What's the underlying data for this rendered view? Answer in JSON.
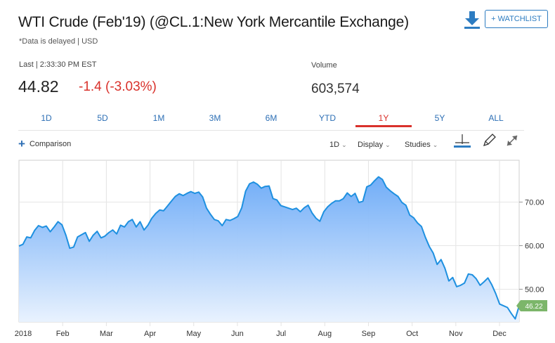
{
  "header": {
    "title": "WTI Crude (Feb'19) (@CL.1:New York Mercantile Exchange)",
    "subtitle": "*Data is delayed | USD",
    "watchlist_label": "+ WATCHLIST"
  },
  "quote": {
    "last_label": "Last | 2:33:30 PM EST",
    "price": "44.82",
    "change": "-1.4 (-3.03%)",
    "volume_label": "Volume",
    "volume": "603,574"
  },
  "tabs": [
    {
      "label": "1D"
    },
    {
      "label": "5D"
    },
    {
      "label": "1M"
    },
    {
      "label": "3M"
    },
    {
      "label": "6M"
    },
    {
      "label": "YTD"
    },
    {
      "label": "1Y"
    },
    {
      "label": "5Y"
    },
    {
      "label": "ALL"
    }
  ],
  "active_tab": "1Y",
  "toolbar": {
    "comparison_label": "Comparison",
    "interval_label": "1D",
    "display_label": "Display",
    "studies_label": "Studies"
  },
  "colors": {
    "accent": "#2d6fb5",
    "negative": "#d9312b",
    "line": "#1e90e0",
    "last_tag": "#7cb66a"
  },
  "chart_data": {
    "type": "area",
    "x_labels": [
      "2018",
      "Feb",
      "Mar",
      "Apr",
      "May",
      "Jun",
      "Jul",
      "Aug",
      "Sep",
      "Oct",
      "Nov",
      "Dec"
    ],
    "y_ticks": [
      50,
      60,
      70
    ],
    "y_tick_labels": [
      "50.00",
      "60.00",
      "70.00"
    ],
    "ylim": [
      42.5,
      79.6
    ],
    "last_value_label": "46.22",
    "series": [
      {
        "values": [
          59.9,
          60.3,
          62.0,
          61.8,
          63.5,
          64.6,
          64.2,
          64.5,
          63.2,
          64.3,
          65.5,
          64.8,
          62.4,
          59.4,
          59.7,
          62.0,
          62.5,
          63.0,
          61.0,
          62.4,
          63.3,
          61.8,
          62.2,
          63.0,
          63.6,
          62.7,
          64.7,
          64.3,
          65.5,
          66.0,
          64.3,
          65.5,
          63.6,
          64.7,
          66.3,
          67.4,
          68.2,
          68.0,
          69.1,
          70.2,
          71.3,
          71.9,
          71.5,
          72.0,
          72.4,
          72.0,
          72.3,
          71.2,
          68.6,
          67.2,
          66.0,
          65.7,
          64.6,
          66.0,
          65.8,
          66.2,
          66.7,
          68.7,
          72.5,
          74.2,
          74.6,
          74.1,
          73.2,
          73.6,
          73.7,
          70.8,
          70.5,
          69.2,
          68.9,
          68.6,
          68.3,
          68.6,
          67.8,
          68.7,
          69.3,
          67.5,
          66.3,
          65.6,
          67.8,
          68.9,
          69.7,
          70.3,
          70.3,
          70.8,
          72.1,
          71.3,
          72.0,
          69.9,
          70.2,
          73.5,
          73.9,
          74.9,
          75.8,
          75.2,
          73.4,
          72.6,
          71.9,
          71.3,
          69.9,
          69.3,
          67.0,
          66.4,
          65.2,
          64.4,
          61.9,
          59.8,
          58.3,
          55.7,
          56.8,
          54.8,
          51.9,
          52.7,
          50.6,
          50.9,
          51.4,
          53.5,
          53.3,
          52.4,
          50.9,
          51.7,
          52.6,
          51.0,
          49.0,
          46.6,
          46.2,
          45.8,
          44.4,
          43.2,
          46.2
        ]
      }
    ]
  }
}
